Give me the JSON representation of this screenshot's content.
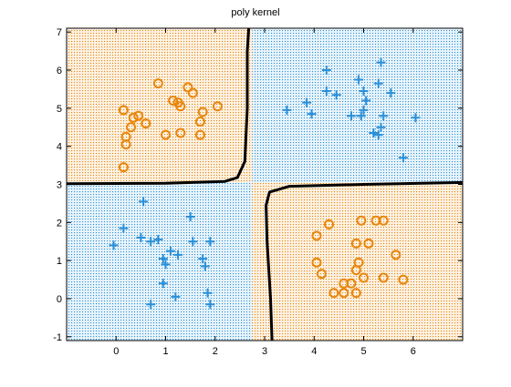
{
  "chart_data": {
    "type": "scatter",
    "title": "poly kernel",
    "xlabel": "",
    "ylabel": "",
    "xlim": [
      -1,
      7
    ],
    "ylim": [
      -1.1,
      7.1
    ],
    "xticks": [
      0,
      1,
      2,
      3,
      4,
      5,
      6
    ],
    "yticks": [
      -1,
      0,
      1,
      2,
      3,
      4,
      5,
      6,
      7
    ],
    "grid": false,
    "colors": {
      "plus_marker": "#2a8fd8",
      "circle_marker": "#e8870c",
      "plus_region_dots": "#2a8fd8",
      "circle_region_dots": "#e8870c",
      "boundary": "#000000"
    },
    "series": [
      {
        "marker": "plus",
        "color": "#2a8fd8",
        "points": [
          [
            4.25,
            6.0
          ],
          [
            5.35,
            6.2
          ],
          [
            4.9,
            5.75
          ],
          [
            5.3,
            5.65
          ],
          [
            4.25,
            5.45
          ],
          [
            4.45,
            5.35
          ],
          [
            5.0,
            5.45
          ],
          [
            5.55,
            5.4
          ],
          [
            3.85,
            5.15
          ],
          [
            5.05,
            5.2
          ],
          [
            3.45,
            4.95
          ],
          [
            3.95,
            4.85
          ],
          [
            4.75,
            4.8
          ],
          [
            5.0,
            4.95
          ],
          [
            4.95,
            4.8
          ],
          [
            5.4,
            4.8
          ],
          [
            6.05,
            4.75
          ],
          [
            5.35,
            4.5
          ],
          [
            5.2,
            4.35
          ],
          [
            5.3,
            4.3
          ],
          [
            5.8,
            3.7
          ],
          [
            0.55,
            2.55
          ],
          [
            1.5,
            2.15
          ],
          [
            0.15,
            1.85
          ],
          [
            0.5,
            1.6
          ],
          [
            0.7,
            1.5
          ],
          [
            0.85,
            1.55
          ],
          [
            1.55,
            1.5
          ],
          [
            1.9,
            1.5
          ],
          [
            -0.05,
            1.4
          ],
          [
            1.1,
            1.25
          ],
          [
            1.25,
            1.15
          ],
          [
            0.95,
            1.05
          ],
          [
            1.75,
            1.05
          ],
          [
            1.0,
            0.9
          ],
          [
            1.8,
            0.85
          ],
          [
            0.95,
            0.4
          ],
          [
            1.2,
            0.05
          ],
          [
            1.85,
            0.15
          ],
          [
            0.7,
            -0.15
          ],
          [
            1.9,
            -0.15
          ]
        ]
      },
      {
        "marker": "circle",
        "color": "#e8870c",
        "points": [
          [
            0.85,
            5.65
          ],
          [
            1.45,
            5.55
          ],
          [
            1.55,
            5.4
          ],
          [
            1.15,
            5.2
          ],
          [
            1.25,
            5.15
          ],
          [
            1.3,
            5.05
          ],
          [
            2.05,
            5.05
          ],
          [
            0.15,
            4.95
          ],
          [
            1.75,
            4.9
          ],
          [
            0.45,
            4.8
          ],
          [
            0.35,
            4.75
          ],
          [
            1.7,
            4.65
          ],
          [
            0.6,
            4.6
          ],
          [
            0.3,
            4.5
          ],
          [
            1.0,
            4.3
          ],
          [
            1.3,
            4.35
          ],
          [
            1.7,
            4.3
          ],
          [
            0.2,
            4.25
          ],
          [
            0.2,
            4.05
          ],
          [
            0.15,
            3.45
          ],
          [
            4.95,
            2.05
          ],
          [
            5.25,
            2.05
          ],
          [
            5.4,
            2.05
          ],
          [
            4.3,
            1.95
          ],
          [
            4.05,
            1.65
          ],
          [
            4.85,
            1.45
          ],
          [
            5.1,
            1.45
          ],
          [
            5.65,
            1.15
          ],
          [
            4.05,
            0.95
          ],
          [
            4.9,
            0.95
          ],
          [
            4.85,
            0.75
          ],
          [
            4.15,
            0.65
          ],
          [
            5.0,
            0.55
          ],
          [
            5.4,
            0.55
          ],
          [
            5.8,
            0.5
          ],
          [
            4.6,
            0.4
          ],
          [
            4.75,
            0.4
          ],
          [
            4.4,
            0.15
          ],
          [
            4.6,
            0.15
          ],
          [
            4.85,
            0.15
          ]
        ]
      }
    ]
  }
}
